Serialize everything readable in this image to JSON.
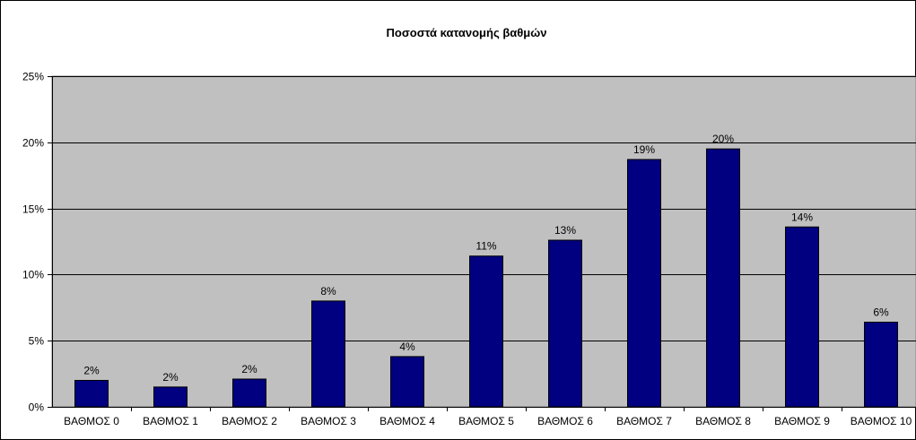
{
  "chart_data": {
    "type": "bar",
    "title": "Ποσοστά κατανομής βαθμών",
    "xlabel": "",
    "ylabel": "",
    "categories": [
      "ΒΑΘΜΟΣ 0",
      "ΒΑΘΜΟΣ 1",
      "ΒΑΘΜΟΣ 2",
      "ΒΑΘΜΟΣ 3",
      "ΒΑΘΜΟΣ 4",
      "ΒΑΘΜΟΣ 5",
      "ΒΑΘΜΟΣ 6",
      "ΒΑΘΜΟΣ 7",
      "ΒΑΘΜΟΣ 8",
      "ΒΑΘΜΟΣ 9",
      "ΒΑΘΜΟΣ 10"
    ],
    "values": [
      2.0,
      1.5,
      2.1,
      8.0,
      3.8,
      11.4,
      12.6,
      18.7,
      19.5,
      13.6,
      6.4
    ],
    "data_labels": [
      "2%",
      "2%",
      "2%",
      "8%",
      "4%",
      "11%",
      "13%",
      "19%",
      "20%",
      "14%",
      "6%"
    ],
    "ylim": [
      0,
      25
    ],
    "yticks": [
      0,
      5,
      10,
      15,
      20,
      25
    ],
    "ytick_labels": [
      "0%",
      "5%",
      "10%",
      "15%",
      "20%",
      "25%"
    ],
    "grid": true,
    "legend": "none",
    "colors": {
      "bar_fill": "#000080",
      "bar_stroke": "#000000",
      "plot_background": "#c0c0c0",
      "gridline": "#000000",
      "page_background": "#ffffff"
    }
  }
}
